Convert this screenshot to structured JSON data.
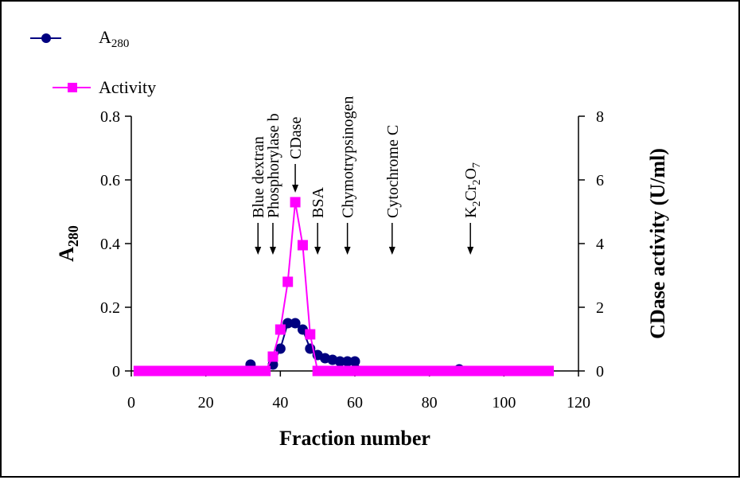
{
  "chart_data": {
    "type": "line",
    "xlabel": "Fraction number",
    "ylabel_left": {
      "main": "A",
      "sub": "280"
    },
    "ylabel_right": "CDase activity (U/ml)",
    "x_ticks": [
      "0",
      "20",
      "40",
      "60",
      "80",
      "100",
      "120"
    ],
    "y_left_ticks": [
      "0",
      "0.2",
      "0.4",
      "0.6",
      "0.8"
    ],
    "y_right_ticks": [
      "0",
      "2",
      "4",
      "6",
      "8"
    ],
    "xlim": [
      0,
      120
    ],
    "ylim_left": [
      0,
      0.8
    ],
    "ylim_right": [
      0,
      8
    ],
    "grid": false,
    "legend_position": "top-left",
    "colors": {
      "a280": "#000080",
      "activity": "#FF00FF"
    },
    "series": [
      {
        "name": "A",
        "name_sub": "280",
        "axis": "left",
        "marker": "circle",
        "x": [
          2,
          4,
          6,
          8,
          10,
          12,
          14,
          16,
          18,
          20,
          22,
          24,
          26,
          28,
          30,
          32,
          34,
          36,
          38,
          40,
          42,
          44,
          46,
          48,
          50,
          52,
          54,
          56,
          58,
          60,
          62,
          64,
          66,
          68,
          70,
          72,
          74,
          76,
          78,
          80,
          82,
          84,
          86,
          88,
          90,
          92,
          94,
          96,
          98,
          100,
          102,
          104,
          106,
          108,
          110,
          112
        ],
        "values": [
          0,
          0,
          0,
          0,
          0,
          0,
          0,
          0,
          0,
          0,
          0,
          0,
          0,
          0,
          0,
          0.02,
          0,
          0,
          0.02,
          0.07,
          0.15,
          0.15,
          0.13,
          0.07,
          0.05,
          0.04,
          0.035,
          0.03,
          0.03,
          0.03,
          0,
          0,
          0,
          0,
          0,
          0,
          0,
          0,
          0,
          0,
          0,
          0,
          0,
          0.005,
          0,
          0,
          0,
          0,
          0,
          0,
          0,
          0,
          0,
          0,
          0,
          0
        ]
      },
      {
        "name": "Activity",
        "axis": "right",
        "marker": "square",
        "x": [
          2,
          4,
          6,
          8,
          10,
          12,
          14,
          16,
          18,
          20,
          22,
          24,
          26,
          28,
          30,
          32,
          34,
          36,
          38,
          40,
          42,
          44,
          46,
          48,
          50,
          52,
          54,
          56,
          58,
          60,
          62,
          64,
          66,
          68,
          70,
          72,
          74,
          76,
          78,
          80,
          82,
          84,
          86,
          88,
          90,
          92,
          94,
          96,
          98,
          100,
          102,
          104,
          106,
          108,
          110,
          112
        ],
        "values": [
          0,
          0,
          0,
          0,
          0,
          0,
          0,
          0,
          0,
          0,
          0,
          0,
          0,
          0,
          0,
          0,
          0,
          0,
          0.45,
          1.3,
          2.8,
          5.3,
          3.95,
          1.15,
          0,
          0,
          0,
          0,
          0,
          0,
          0,
          0,
          0,
          0,
          0,
          0,
          0,
          0,
          0,
          0,
          0,
          0,
          0,
          0,
          0,
          0,
          0,
          0,
          0,
          0,
          0,
          0,
          0,
          0,
          0,
          0
        ]
      }
    ],
    "annotations": [
      {
        "text": "Blue dextran",
        "x": 34
      },
      {
        "text": "Phosphorylase b",
        "x": 38
      },
      {
        "text": "CDase",
        "x": 44
      },
      {
        "text": "BSA",
        "x": 50
      },
      {
        "text": "Chymotrypsinogen",
        "x": 58
      },
      {
        "text": "Cytochrome C",
        "x": 70
      },
      {
        "text": "K",
        "sub1": "2",
        "mid": "Cr",
        "sub2": "2",
        "end": "O",
        "sub3": "7",
        "x": 91
      }
    ]
  }
}
